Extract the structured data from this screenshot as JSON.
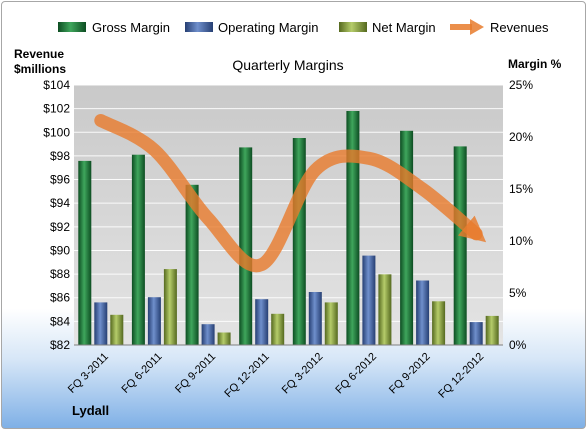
{
  "chart_data": {
    "type": "bar",
    "title": "Quarterly Margins",
    "company_label": "Lydall",
    "y_left_label_lines": [
      "Revenue",
      "$millions"
    ],
    "y_right_label": "Margin %",
    "categories": [
      "FQ 3-2011",
      "FQ 6-2011",
      "FQ 9-2011",
      "FQ 12-2011",
      "FQ 3-2012",
      "FQ 6-2012",
      "FQ 9-2012",
      "FQ 12-2012"
    ],
    "y_left_ticks": [
      "$82",
      "$84",
      "$86",
      "$88",
      "$90",
      "$92",
      "$94",
      "$96",
      "$98",
      "$100",
      "$102",
      "$104"
    ],
    "y_left_lim": [
      82,
      104
    ],
    "y_right_ticks": [
      "0%",
      "5%",
      "10%",
      "15%",
      "20%",
      "25%"
    ],
    "y_right_lim": [
      0,
      25
    ],
    "series": [
      {
        "name": "Gross Margin",
        "axis": "right",
        "color": "#1e7a3c",
        "values": [
          17.7,
          18.3,
          15.4,
          19.0,
          19.9,
          22.5,
          20.6,
          19.1
        ]
      },
      {
        "name": "Operating Margin",
        "axis": "right",
        "color": "#3f63a8",
        "values": [
          4.1,
          4.6,
          2.0,
          4.4,
          5.1,
          8.6,
          6.2,
          2.2
        ]
      },
      {
        "name": "Net Margin",
        "axis": "right",
        "color": "#7f9a36",
        "values": [
          2.9,
          7.3,
          1.2,
          3.0,
          4.1,
          6.8,
          4.2,
          2.8
        ]
      },
      {
        "name": "Revenues",
        "axis": "left",
        "type": "line",
        "color": "#e87b2c",
        "values": [
          101.0,
          98.5,
          92.7,
          88.8,
          96.8,
          97.8,
          95.2,
          91.4
        ]
      }
    ],
    "legend_position": "top",
    "grid": true
  }
}
